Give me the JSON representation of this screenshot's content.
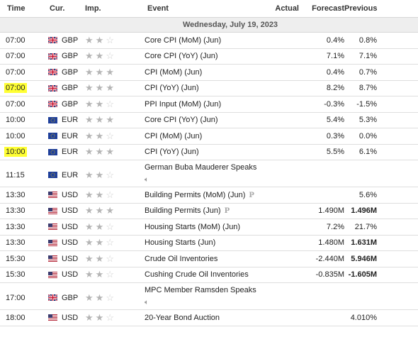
{
  "headers": {
    "time": "Time",
    "currency": "Cur.",
    "importance": "Imp.",
    "event": "Event",
    "actual": "Actual",
    "forecast": "Forecast",
    "previous": "Previous"
  },
  "date_label": "Wednesday, July 19, 2023",
  "colors": {
    "highlight": "#ffff33",
    "star_on": "#b5b5b5",
    "star_off": "#cfcfcf"
  },
  "rows": [
    {
      "time": "07:00",
      "currency": "GBP",
      "stars": 2,
      "event": "Core CPI (MoM) (Jun)",
      "actual": "",
      "forecast": "0.4%",
      "previous": "0.8%"
    },
    {
      "time": "07:00",
      "currency": "GBP",
      "stars": 2,
      "event": "Core CPI (YoY) (Jun)",
      "actual": "",
      "forecast": "7.1%",
      "previous": "7.1%"
    },
    {
      "time": "07:00",
      "currency": "GBP",
      "stars": 3,
      "event": "CPI (MoM) (Jun)",
      "actual": "",
      "forecast": "0.4%",
      "previous": "0.7%"
    },
    {
      "time": "07:00",
      "currency": "GBP",
      "stars": 3,
      "event": "CPI (YoY) (Jun)",
      "actual": "",
      "forecast": "8.2%",
      "previous": "8.7%"
    },
    {
      "time": "07:00",
      "currency": "GBP",
      "stars": 2,
      "event": "PPI Input (MoM) (Jun)",
      "actual": "",
      "forecast": "-0.3%",
      "previous": "-1.5%"
    },
    {
      "time": "10:00",
      "currency": "EUR",
      "stars": 3,
      "event": "Core CPI (YoY) (Jun)",
      "actual": "",
      "forecast": "5.4%",
      "previous": "5.3%"
    },
    {
      "time": "10:00",
      "currency": "EUR",
      "stars": 2,
      "event": "CPI (MoM) (Jun)",
      "actual": "",
      "forecast": "0.3%",
      "previous": "0.0%"
    },
    {
      "time": "10:00",
      "currency": "EUR",
      "stars": 3,
      "event": "CPI (YoY) (Jun)",
      "actual": "",
      "forecast": "5.5%",
      "previous": "6.1%"
    },
    {
      "time": "11:15",
      "currency": "EUR",
      "stars": 2,
      "event": "German Buba Mauderer Speaks",
      "actual": "",
      "forecast": "",
      "previous": ""
    },
    {
      "time": "13:30",
      "currency": "USD",
      "stars": 2,
      "event": "Building Permits (MoM) (Jun)",
      "actual": "",
      "forecast": "",
      "previous": "5.6%"
    },
    {
      "time": "13:30",
      "currency": "USD",
      "stars": 3,
      "event": "Building Permits (Jun)",
      "actual": "",
      "forecast": "1.490M",
      "previous": "1.496M"
    },
    {
      "time": "13:30",
      "currency": "USD",
      "stars": 2,
      "event": "Housing Starts (MoM) (Jun)",
      "actual": "",
      "forecast": "7.2%",
      "previous": "21.7%"
    },
    {
      "time": "13:30",
      "currency": "USD",
      "stars": 2,
      "event": "Housing Starts (Jun)",
      "actual": "",
      "forecast": "1.480M",
      "previous": "1.631M"
    },
    {
      "time": "15:30",
      "currency": "USD",
      "stars": 2,
      "event": "Crude Oil Inventories",
      "actual": "",
      "forecast": "-2.440M",
      "previous": "5.946M"
    },
    {
      "time": "15:30",
      "currency": "USD",
      "stars": 2,
      "event": "Cushing Crude Oil Inventories",
      "actual": "",
      "forecast": "-0.835M",
      "previous": "-1.605M"
    },
    {
      "time": "17:00",
      "currency": "GBP",
      "stars": 2,
      "event": "MPC Member Ramsden Speaks",
      "actual": "",
      "forecast": "",
      "previous": ""
    },
    {
      "time": "18:00",
      "currency": "USD",
      "stars": 2,
      "event": "20-Year Bond Auction",
      "actual": "",
      "forecast": "",
      "previous": "4.010%"
    }
  ]
}
